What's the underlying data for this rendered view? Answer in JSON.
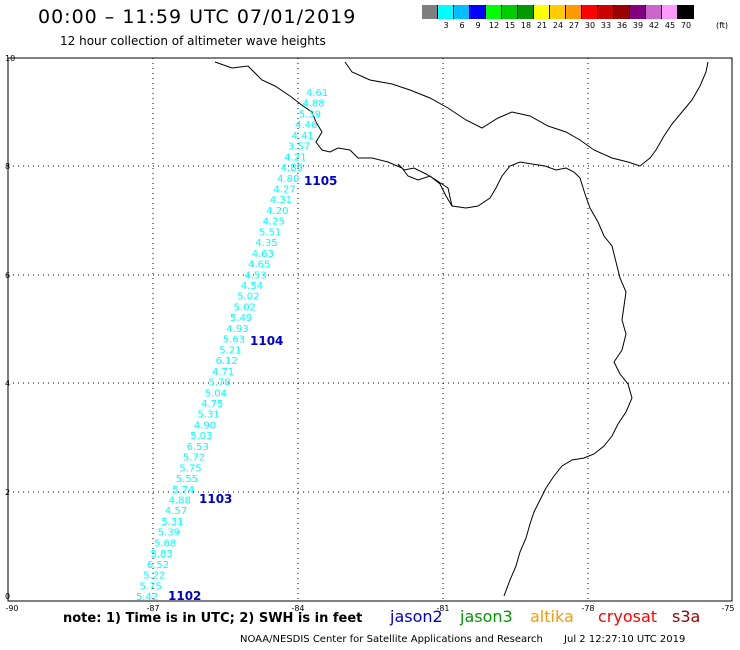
{
  "header": {
    "title": "00:00 – 11:59 UTC 07/01/2019",
    "subtitle": "12 hour collection of altimeter wave heights"
  },
  "color_scale": {
    "colors": [
      "#7f7f7f",
      "#00ffff",
      "#00bfff",
      "#0000ff",
      "#00ff00",
      "#00cc00",
      "#009900",
      "#ffff00",
      "#ffcc00",
      "#ff9900",
      "#ff0000",
      "#cc0000",
      "#990000",
      "#800080",
      "#cc66cc",
      "#ff99ff",
      "#000000"
    ],
    "labels": [
      "",
      "3",
      "6",
      "9",
      "12",
      "15",
      "18",
      "21",
      "24",
      "27",
      "30",
      "33",
      "36",
      "39",
      "42",
      "45",
      "70"
    ],
    "unit": "(ft)"
  },
  "axes": {
    "x_ticks": [
      "-90",
      "-87",
      "-84",
      "-81",
      "-78",
      "-75"
    ],
    "y_ticks": [
      "0",
      "2",
      "4",
      "6",
      "8",
      "10"
    ]
  },
  "map": {
    "track_color": "#00ffff",
    "time_color": "#0000cc",
    "wave_heights": [
      "5.42",
      "5.75",
      "5.22",
      "6.52",
      "5.83",
      "5.68",
      "5.39",
      "5.31",
      "4.57",
      "4.88",
      "5.74",
      "5.55",
      "5.75",
      "5.72",
      "6.53",
      "5.03",
      "4.90",
      "5.31",
      "4.75",
      "5.04",
      "5.78",
      "4.71",
      "6.12",
      "5.21",
      "5.63",
      "4.93",
      "5.49",
      "5.02",
      "5.02",
      "4.54",
      "4.53",
      "4.65",
      "4.63",
      "4.35",
      "5.51",
      "4.25",
      "4.20",
      "4.31",
      "4.27",
      "4.80",
      "4.89",
      "4.21",
      "3.57",
      "4.41",
      "4.46",
      "5.39",
      "4.88",
      "4.61"
    ],
    "time_labels": [
      "1102",
      "1103",
      "1104",
      "1105"
    ]
  },
  "footer": {
    "note": "note:  1) Time is in UTC;  2) SWH is in feet",
    "satellites": [
      {
        "name": "jason2",
        "color": "#0000cc"
      },
      {
        "name": "jason3",
        "color": "#009900"
      },
      {
        "name": "altika",
        "color": "#ff9900"
      },
      {
        "name": "cryosat",
        "color": "#ff0000"
      },
      {
        "name": "s3a",
        "color": "#990000"
      }
    ],
    "credit": "NOAA/NESDIS Center for Satellite Applications and Research",
    "timestamp": "Jul  2 12:27:10 UTC 2019"
  }
}
